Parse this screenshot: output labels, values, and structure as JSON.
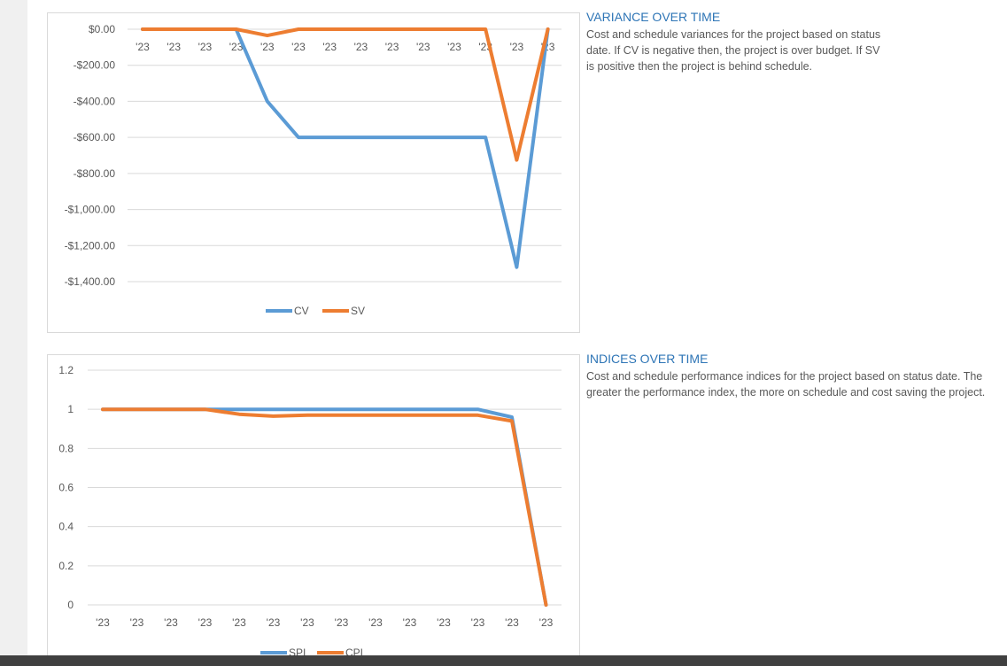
{
  "colors": {
    "cv": "#5b9bd5",
    "sv": "#ed7d31",
    "spi": "#5b9bd5",
    "cpi": "#ed7d31",
    "title": "#2e75b6"
  },
  "variance": {
    "title": "VARIANCE OVER TIME",
    "description": "Cost and schedule variances for the project based on status date.  If CV is negative then, the project is over budget.  If SV is positive then the project is behind schedule."
  },
  "indices": {
    "title": "INDICES OVER TIME",
    "description": "Cost and schedule performance indices for the project based on status date.  The greater the performance index, the more on schedule and cost saving the project."
  },
  "chart_data": [
    {
      "type": "line",
      "categories": [
        "'23",
        "'23",
        "'23",
        "'23",
        "'23",
        "'23",
        "'23",
        "'23",
        "'23",
        "'23",
        "'23",
        "'23",
        "'23",
        "'23"
      ],
      "series": [
        {
          "name": "CV",
          "values": [
            0,
            0,
            0,
            0,
            -400,
            -600,
            -600,
            -600,
            -600,
            -600,
            -600,
            -600,
            -1320,
            0
          ]
        },
        {
          "name": "SV",
          "values": [
            0,
            0,
            0,
            0,
            -35,
            0,
            0,
            0,
            0,
            0,
            0,
            0,
            -725,
            0
          ]
        }
      ],
      "yticks": [
        "$0.00",
        "-$200.00",
        "-$400.00",
        "-$600.00",
        "-$800.00",
        "-$1,000.00",
        "-$1,200.00",
        "-$1,400.00"
      ],
      "ylim": [
        -1400,
        0
      ],
      "legend": "bottom",
      "grid": true
    },
    {
      "type": "line",
      "categories": [
        "'23",
        "'23",
        "'23",
        "'23",
        "'23",
        "'23",
        "'23",
        "'23",
        "'23",
        "'23",
        "'23",
        "'23",
        "'23",
        "'23"
      ],
      "series": [
        {
          "name": "SPI",
          "values": [
            1,
            1,
            1,
            1,
            1,
            1,
            1,
            1,
            1,
            1,
            1,
            1,
            0.96,
            0
          ]
        },
        {
          "name": "CPI",
          "values": [
            1,
            1,
            1,
            1,
            0.975,
            0.965,
            0.97,
            0.97,
            0.97,
            0.97,
            0.97,
            0.97,
            0.94,
            0
          ]
        }
      ],
      "yticks": [
        "1.2",
        "1",
        "0.8",
        "0.6",
        "0.4",
        "0.2",
        "0"
      ],
      "ylim": [
        0,
        1.2
      ],
      "legend": "bottom",
      "grid": true
    }
  ]
}
